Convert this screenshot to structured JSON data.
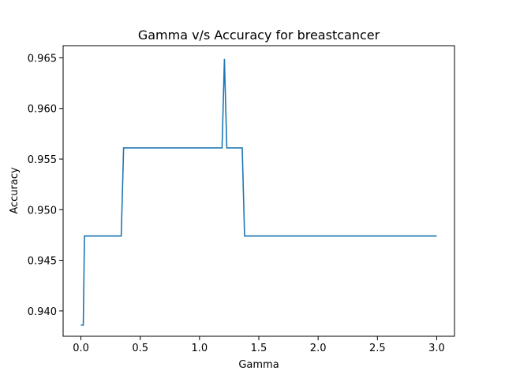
{
  "chart_data": {
    "type": "line",
    "title": "Gamma v/s Accuracy for breastcancer",
    "xlabel": "Gamma",
    "ylabel": "Accuracy",
    "xlim": [
      -0.15,
      3.15
    ],
    "ylim": [
      0.9375,
      0.9662
    ],
    "xticks": [
      0.0,
      0.5,
      1.0,
      1.5,
      2.0,
      2.5,
      3.0
    ],
    "xtick_labels": [
      "0.0",
      "0.5",
      "1.0",
      "1.5",
      "2.0",
      "2.5",
      "3.0"
    ],
    "yticks": [
      0.94,
      0.945,
      0.95,
      0.955,
      0.96,
      0.965
    ],
    "ytick_labels": [
      "0.940",
      "0.945",
      "0.950",
      "0.955",
      "0.960",
      "0.965"
    ],
    "grid": false,
    "series": [
      {
        "color": "#1f77b4",
        "x": [
          0.0,
          0.02,
          0.03,
          0.34,
          0.36,
          1.19,
          1.21,
          1.23,
          1.36,
          1.38,
          3.0
        ],
        "y": [
          0.9386,
          0.9386,
          0.9474,
          0.9474,
          0.9561,
          0.9561,
          0.9649,
          0.9561,
          0.9561,
          0.9474,
          0.9474
        ]
      }
    ]
  }
}
